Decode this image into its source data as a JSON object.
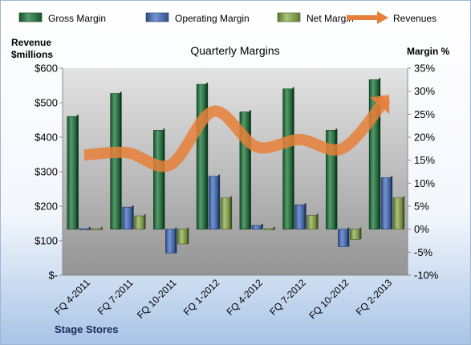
{
  "chart_data": {
    "type": "bar",
    "title": "Quarterly Margins",
    "footer": "Stage Stores",
    "categories": [
      "FQ 4-2011",
      "FQ 7-2011",
      "FQ 10-2011",
      "FQ 1-2012",
      "FQ 4-2012",
      "FQ 7-2012",
      "FQ 10-2012",
      "FQ 2-2013"
    ],
    "left_axis": {
      "label_line1": "Revenue",
      "label_line2": "$millions",
      "ticks": [
        "$600",
        "$500",
        "$400",
        "$300",
        "$200",
        "$100",
        "$-"
      ],
      "range": [
        0,
        600
      ]
    },
    "right_axis": {
      "label": "Margin %",
      "ticks": [
        "35%",
        "30%",
        "25%",
        "20%",
        "15%",
        "10%",
        "5%",
        "0%",
        "-5%",
        "-10%"
      ],
      "range": [
        -10,
        35
      ]
    },
    "series": [
      {
        "name": "Gross Margin",
        "axis": "right",
        "kind": "bar",
        "color": "#1e7a3c",
        "values": [
          24.5,
          29.5,
          21.5,
          31.5,
          25.5,
          30.5,
          21.5,
          32.5
        ]
      },
      {
        "name": "Operating Margin",
        "axis": "right",
        "kind": "bar",
        "color": "#4472c4",
        "values": [
          0.1,
          4.8,
          -5.2,
          11.5,
          0.8,
          5.3,
          -3.8,
          11.2
        ]
      },
      {
        "name": "Net Margin",
        "axis": "right",
        "kind": "bar",
        "color": "#8eb04a",
        "values": [
          0.1,
          2.9,
          -3.2,
          6.8,
          0.1,
          3.0,
          -2.2,
          6.8
        ]
      },
      {
        "name": "Revenues",
        "axis": "left",
        "kind": "line",
        "color": "#e8803a",
        "values": [
          348,
          355,
          320,
          475,
          372,
          393,
          368,
          512
        ]
      }
    ],
    "legend_position": "top",
    "grid": false
  }
}
